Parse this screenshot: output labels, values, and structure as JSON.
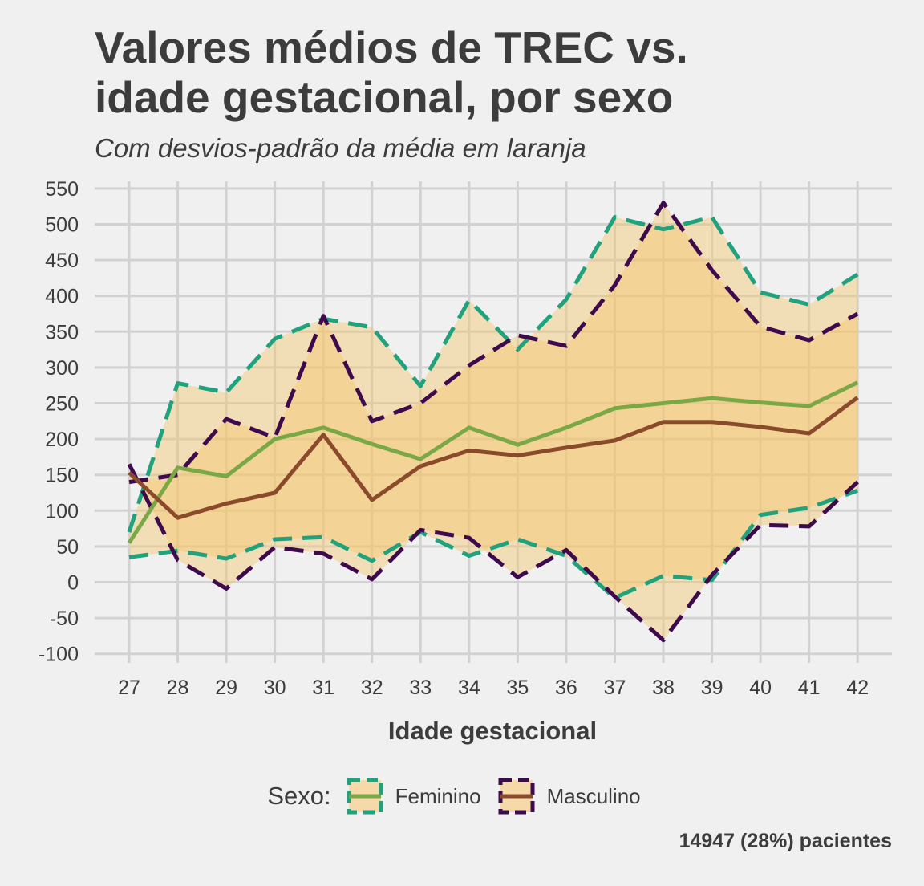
{
  "title_lines": [
    "Valores médios de TREC vs.",
    "idade gestacional, por sexo"
  ],
  "subtitle": "Com desvios-padrão da média em laranja",
  "caption": "14947 (28%) pacientes",
  "legend": {
    "title": "Sexo:",
    "items": [
      {
        "label": "Feminino",
        "dash_color": "#1fa27d",
        "line_color": "#7aa846"
      },
      {
        "label": "Masculino",
        "dash_color": "#3e0a4e",
        "line_color": "#8b4a2c"
      }
    ]
  },
  "colors": {
    "background": "#f0f0f0",
    "grid": "#d2d2d2",
    "band": "#f5c86e",
    "feminino_mean": "#7aa846",
    "masculino_mean": "#8b4a2c",
    "feminino_sd": "#1fa27d",
    "masculino_sd": "#3e0a4e"
  },
  "chart_data": {
    "type": "line",
    "title": "Valores médios de TREC vs. idade gestacional, por sexo",
    "subtitle": "Com desvios-padrão da média em laranja",
    "xlabel": "Idade gestacional",
    "ylabel": "",
    "x": [
      27,
      28,
      29,
      30,
      31,
      32,
      33,
      34,
      35,
      36,
      37,
      38,
      39,
      40,
      41,
      42
    ],
    "ylim": [
      -110,
      560
    ],
    "yticks": [
      -100,
      -50,
      0,
      50,
      100,
      150,
      200,
      250,
      300,
      350,
      400,
      450,
      500,
      550
    ],
    "grid": true,
    "legend_position": "bottom",
    "series": [
      {
        "name": "Feminino",
        "kind": "mean",
        "values": [
          55,
          160,
          148,
          200,
          216,
          193,
          172,
          216,
          192,
          216,
          243,
          250,
          257,
          251,
          246,
          279
        ]
      },
      {
        "name": "Masculino",
        "kind": "mean",
        "values": [
          153,
          90,
          110,
          125,
          206,
          115,
          162,
          184,
          177,
          188,
          198,
          224,
          224,
          217,
          208,
          258
        ]
      },
      {
        "name": "Feminino",
        "kind": "mean + sd",
        "values": [
          70,
          278,
          265,
          340,
          368,
          356,
          274,
          394,
          325,
          395,
          510,
          493,
          510,
          405,
          388,
          430
        ]
      },
      {
        "name": "Feminino",
        "kind": "mean - sd",
        "values": [
          35,
          44,
          33,
          60,
          63,
          30,
          70,
          37,
          60,
          37,
          -22,
          9,
          3,
          94,
          104,
          128
        ]
      },
      {
        "name": "Masculino",
        "kind": "mean + sd",
        "values": [
          140,
          150,
          228,
          202,
          372,
          225,
          250,
          303,
          345,
          330,
          415,
          530,
          436,
          357,
          338,
          375
        ]
      },
      {
        "name": "Masculino",
        "kind": "mean - sd",
        "values": [
          165,
          31,
          -9,
          49,
          40,
          4,
          73,
          62,
          7,
          45,
          -20,
          -81,
          10,
          80,
          78,
          140
        ]
      }
    ]
  }
}
